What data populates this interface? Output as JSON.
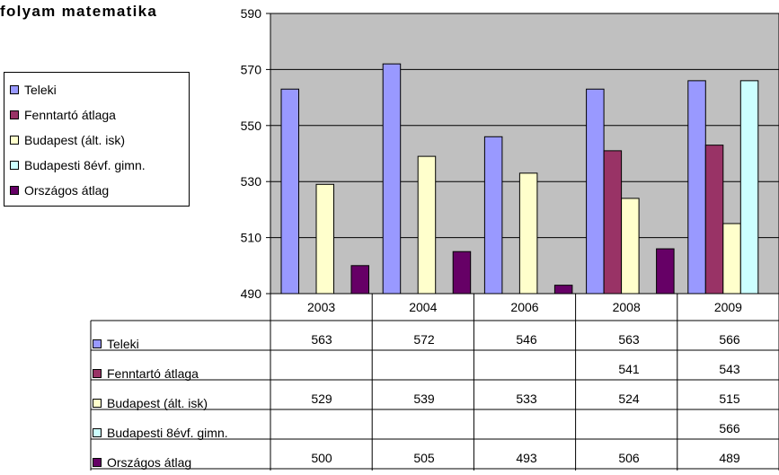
{
  "chart_data": {
    "type": "bar",
    "title": "folyam matematika",
    "categories": [
      "2003",
      "2004",
      "2006",
      "2008",
      "2009"
    ],
    "series": [
      {
        "name": "Teleki",
        "color": "#9999ff",
        "values": [
          563,
          572,
          546,
          563,
          566
        ]
      },
      {
        "name": "Fenntartó átlaga",
        "color": "#993366",
        "values": [
          null,
          null,
          null,
          541,
          543
        ]
      },
      {
        "name": "Budapest (ált. isk)",
        "color": "#ffffcc",
        "values": [
          529,
          539,
          533,
          524,
          515
        ]
      },
      {
        "name": "Budapesti 8évf. gimn.",
        "color": "#ccffff",
        "values": [
          null,
          null,
          null,
          null,
          566
        ]
      },
      {
        "name": "Országos átlag",
        "color": "#660066",
        "values": [
          500,
          505,
          493,
          506,
          489
        ]
      }
    ],
    "table_values": [
      [
        "563",
        "572",
        "546",
        "563",
        "566"
      ],
      [
        "",
        "",
        "",
        "541",
        "543"
      ],
      [
        "529",
        "539",
        "533",
        "524",
        "515"
      ],
      [
        "",
        "",
        "",
        "",
        "566"
      ],
      [
        "500",
        "505",
        "493",
        "506",
        "489"
      ]
    ],
    "ylim": [
      490,
      590
    ],
    "yticks": [
      "490",
      "510",
      "530",
      "550",
      "570",
      "590"
    ],
    "grid": true,
    "legend": "left",
    "plot_background": "#c0c0c0"
  }
}
